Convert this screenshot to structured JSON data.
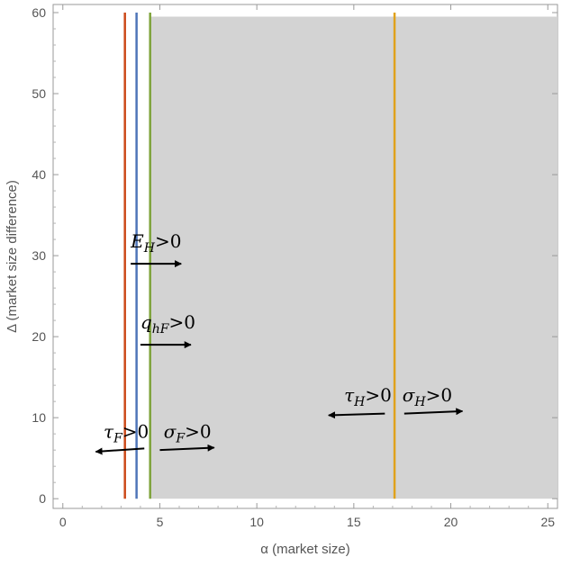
{
  "chart_data": {
    "type": "region-plot",
    "xlabel": "α (market size)",
    "ylabel": "Δ (market size difference)",
    "xlim": [
      -0.5,
      25.5
    ],
    "ylim": [
      -1.2,
      61
    ],
    "xticks": [
      0,
      5,
      10,
      15,
      20,
      25
    ],
    "yticks": [
      0,
      10,
      20,
      30,
      40,
      50,
      60
    ],
    "x_tick_labels": [
      "0",
      "5",
      "10",
      "15",
      "20",
      "25"
    ],
    "y_tick_labels": [
      "0",
      "10",
      "20",
      "30",
      "40",
      "50",
      "60"
    ],
    "grid": false,
    "shaded_region": {
      "x_from": 4.5,
      "x_to": 25.5,
      "y_from": 0,
      "y_to": 59.5,
      "color": "#d3d3d3"
    },
    "vertical_lines": [
      {
        "x": 3.2,
        "y_from": 0,
        "y_to": 60,
        "color": "#cc4a1a"
      },
      {
        "x": 3.8,
        "y_from": 0,
        "y_to": 60,
        "color": "#4f75b8"
      },
      {
        "x": 4.5,
        "y_from": 0,
        "y_to": 60,
        "color": "#7ea33a"
      },
      {
        "x": 17.1,
        "y_from": 0,
        "y_to": 60,
        "color": "#e0a21b"
      }
    ],
    "annotations": [
      {
        "label": "E",
        "sub": "H",
        "suffix": ">0",
        "x": 3.5,
        "y": 31,
        "arrow": {
          "x1": 3.5,
          "y1": 29,
          "x2": 6.1,
          "y2": 29
        }
      },
      {
        "label": "q",
        "sub": "hF",
        "suffix": ">0",
        "x": 4.0,
        "y": 21,
        "arrow": {
          "x1": 4.0,
          "y1": 19,
          "x2": 6.6,
          "y2": 19
        }
      },
      {
        "label": "τ",
        "sub": "H",
        "suffix": ">0",
        "x": 14.5,
        "y": 12,
        "arrow": {
          "x1": 16.6,
          "y1": 10.5,
          "x2": 13.7,
          "y2": 10.3
        }
      },
      {
        "label": "σ",
        "sub": "H",
        "suffix": ">0",
        "x": 17.5,
        "y": 12,
        "arrow": {
          "x1": 17.6,
          "y1": 10.5,
          "x2": 20.6,
          "y2": 10.8
        }
      },
      {
        "label": "τ",
        "sub": "F",
        "suffix": ">0",
        "x": 2.1,
        "y": 7.5,
        "arrow": {
          "x1": 4.2,
          "y1": 6.2,
          "x2": 1.7,
          "y2": 5.8
        }
      },
      {
        "label": "σ",
        "sub": "F",
        "suffix": ">0",
        "x": 5.2,
        "y": 7.5,
        "arrow": {
          "x1": 5.0,
          "y1": 6.0,
          "x2": 7.8,
          "y2": 6.3
        }
      }
    ]
  }
}
